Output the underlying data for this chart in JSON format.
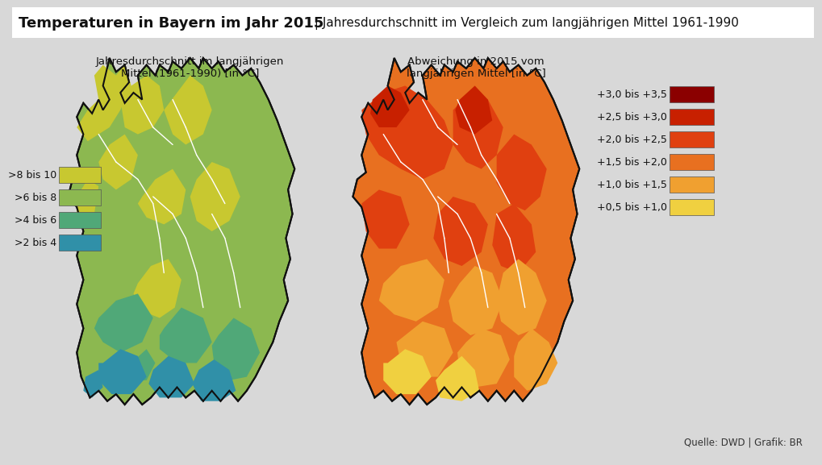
{
  "title_bold": "Temperaturen in Bayern im Jahr 2015",
  "title_normal": " | Jahresdurchschnitt im Vergleich zum langjährigen Mittel 1961-1990",
  "subtitle_left": "Jahresdurchschnitt im langjährigen\nMittel (1961-1990) [in °C]",
  "subtitle_right": "Abweichung in 2015 vom\nlangjährigen Mittel [in °C]",
  "source": "Quelle: DWD | Grafik: BR",
  "bg_color": "#d8d8d8",
  "legend_left_colors": [
    "#c8c830",
    "#8cb850",
    "#50a878",
    "#3090a8"
  ],
  "legend_left_labels": [
    ">8 bis 10",
    ">6 bis 8",
    ">4 bis 6",
    ">2 bis 4"
  ],
  "legend_right_colors": [
    "#8b0000",
    "#c82000",
    "#e04010",
    "#e87020",
    "#f0a030",
    "#f0d040"
  ],
  "legend_right_labels": [
    "+3,0 bis +3,5",
    "+2,5 bis +3,0",
    "+2,0 bis +2,5",
    "+1,5 bis +2,0",
    "+1,0 bis +1,5",
    "+0,5 bis +1,0"
  ]
}
